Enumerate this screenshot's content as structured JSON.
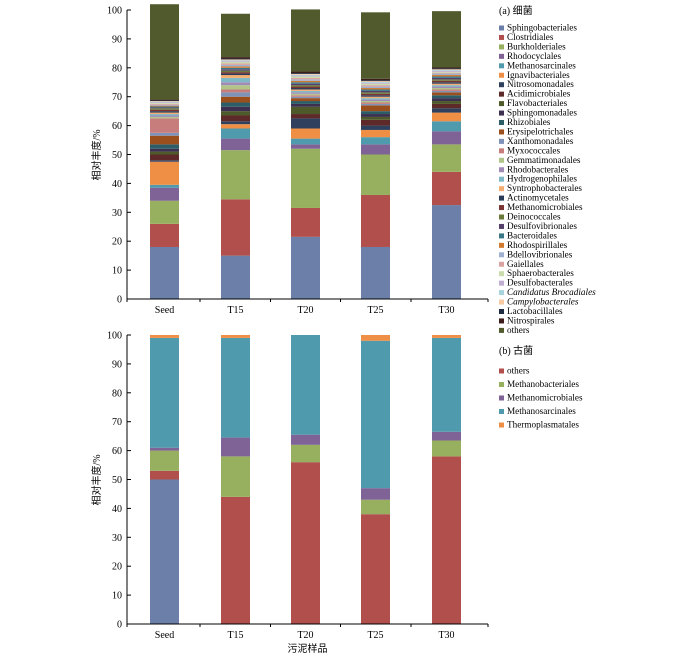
{
  "colors": {
    "Sphingobacteriales": "#6b7fa8",
    "Clostridiales": "#b04f4c",
    "Burkholderiales": "#97b05f",
    "Rhodocyclales": "#7f6296",
    "Methanosarcinales": "#4f9aac",
    "Ignavibacteriales": "#ee8f45",
    "Nitrosomonadales": "#2f3f5e",
    "Acidimicrobiales": "#5e2a29",
    "Flavobacteriales": "#4f5a2a",
    "Sphingomonadales": "#3c2f4f",
    "Rhizobiales": "#2d5e68",
    "Erysipelotrichales": "#9a4f1c",
    "Xanthomonadales": "#7f93b8",
    "Myxococcales": "#c67d7b",
    "Gemmatimonadales": "#b1c58a",
    "Rhodobacterales": "#a08ab6",
    "Hydrogenophilales": "#7fb8c6",
    "Syntrophobacterales": "#f4ad72",
    "Actinomycetales": "#2a3b5a",
    "Methanomicrobiales": "#7a3533",
    "Deinococcales": "#6a7a3a",
    "Desulfovibrionales": "#54406b",
    "Bacteroidales": "#3a7888",
    "Rhodospirillales": "#d07a30",
    "Bdellovibrionales": "#9fb0d0",
    "Gaiellales": "#d9a3a1",
    "Sphaerobacterales": "#cadcab",
    "Desulfobacterales": "#c0aed2",
    "Candidatus Brocadiales": "#a8d2dc",
    "Campylobacterales": "#f7c9a3",
    "Lactobacillales": "#1d2a40",
    "Nitrospirales": "#3d1c1c",
    "others_bacteria": "#505a2d",
    "others_archaea": "#b04f4c",
    "Methanobacteriales": "#97b05f",
    "Methanomicrobiales_a": "#7f6296",
    "Methanosarcinales_a": "#4f9aac",
    "Thermoplasmatales": "#ee8f45",
    "seed_archaea_base": "#6b7fa8"
  },
  "chart_data": [
    {
      "type": "bar",
      "stacked": true,
      "panel_title": "(a) 细菌",
      "ylabel": "相对丰度/%",
      "xlabel": "",
      "ylim": [
        0,
        100
      ],
      "yticks": [
        "0",
        "10",
        "20",
        "30",
        "40",
        "50",
        "60",
        "70",
        "80",
        "90",
        "100"
      ],
      "categories": [
        "Seed",
        "T15",
        "T20",
        "T25",
        "T30"
      ],
      "legend_position": "right",
      "series": [
        {
          "name": "Sphingobacteriales",
          "values": [
            18,
            15,
            21.5,
            18,
            32.5
          ]
        },
        {
          "name": "Clostridiales",
          "values": [
            8,
            19.5,
            10,
            18,
            11.5
          ]
        },
        {
          "name": "Burkholderiales",
          "values": [
            8,
            17,
            20.5,
            14,
            9.5
          ]
        },
        {
          "name": "Rhodocyclales",
          "values": [
            4.5,
            4,
            1.5,
            3.5,
            4.5
          ]
        },
        {
          "name": "Methanosarcinales",
          "values": [
            1,
            3.5,
            2,
            2.5,
            3.5
          ]
        },
        {
          "name": "Ignavibacteriales",
          "values": [
            8,
            1.5,
            3.5,
            2.5,
            3
          ]
        },
        {
          "name": "Nitrosomonadales",
          "values": [
            0.5,
            1,
            3.5,
            1.5,
            1.5
          ]
        },
        {
          "name": "Acidimicrobiales",
          "values": [
            2,
            2,
            1.5,
            2,
            1.5
          ]
        },
        {
          "name": "Flavobacteriales",
          "values": [
            1,
            1.5,
            2.5,
            1,
            1
          ]
        },
        {
          "name": "Sphingomonadales",
          "values": [
            1,
            1.5,
            1,
            1,
            1
          ]
        },
        {
          "name": "Rhizobiales",
          "values": [
            1.5,
            1.5,
            1,
            1,
            1
          ]
        },
        {
          "name": "Erysipelotrichales",
          "values": [
            3,
            2,
            1,
            2,
            1
          ]
        },
        {
          "name": "Xanthomonadales",
          "values": [
            1,
            1.5,
            0.5,
            0.5,
            0.5
          ]
        },
        {
          "name": "Myxococcales",
          "values": [
            5,
            1,
            0.5,
            0.5,
            0.5
          ]
        },
        {
          "name": "Gemmatimonadales",
          "values": [
            0.5,
            1.5,
            0.5,
            0.5,
            0.5
          ]
        },
        {
          "name": "Rhodobacterales",
          "values": [
            0.5,
            1,
            0.5,
            0.5,
            0.5
          ]
        },
        {
          "name": "Hydrogenophilales",
          "values": [
            0.5,
            1.5,
            0.5,
            0.5,
            0.5
          ]
        },
        {
          "name": "Syntrophobacterales",
          "values": [
            0.5,
            1,
            0.5,
            0.5,
            0.5
          ]
        },
        {
          "name": "Actinomycetales",
          "values": [
            0.5,
            0.5,
            0.5,
            0.5,
            0.5
          ]
        },
        {
          "name": "Methanomicrobiales",
          "values": [
            0.5,
            0.5,
            0.5,
            0.5,
            0.5
          ]
        },
        {
          "name": "Deinococcales",
          "values": [
            0.5,
            0.5,
            0.5,
            0.5,
            0.5
          ]
        },
        {
          "name": "Desulfovibrionales",
          "values": [
            0.3,
            0.5,
            0.5,
            0.5,
            0.5
          ]
        },
        {
          "name": "Bacteroidales",
          "values": [
            0.3,
            0.5,
            0.5,
            0.5,
            0.5
          ]
        },
        {
          "name": "Rhodospirillales",
          "values": [
            0.3,
            0.5,
            0.5,
            0.5,
            0.5
          ]
        },
        {
          "name": "Bdellovibrionales",
          "values": [
            0.3,
            0.5,
            0.5,
            0.5,
            0.5
          ]
        },
        {
          "name": "Gaiellales",
          "values": [
            0.3,
            0.5,
            0.5,
            0.5,
            0.3
          ]
        },
        {
          "name": "Sphaerobacterales",
          "values": [
            0.3,
            0.5,
            0.5,
            0.5,
            0.3
          ]
        },
        {
          "name": "Desulfobacterales",
          "values": [
            0.3,
            0.3,
            0.3,
            0.3,
            0.3
          ]
        },
        {
          "name": "Candidatus Brocadiales",
          "values": [
            0.2,
            0.3,
            0.3,
            0.3,
            0.3
          ]
        },
        {
          "name": "Campylobacterales",
          "values": [
            0.2,
            0.3,
            0.3,
            0.3,
            0.3
          ]
        },
        {
          "name": "Lactobacillales",
          "values": [
            0.2,
            0.3,
            0.3,
            0.3,
            0.3
          ]
        },
        {
          "name": "Nitrospirales",
          "values": [
            0.3,
            0.5,
            0.5,
            0.5,
            0.3
          ]
        },
        {
          "name": "others",
          "values": [
            33,
            15,
            21.5,
            23,
            19.5
          ]
        }
      ]
    },
    {
      "type": "bar",
      "stacked": true,
      "panel_title": "(b) 古菌",
      "ylabel": "相对丰度/%",
      "xlabel": "污泥样品",
      "ylim": [
        0,
        100
      ],
      "yticks": [
        "0",
        "10",
        "20",
        "30",
        "40",
        "50",
        "60",
        "70",
        "80",
        "90",
        "100"
      ],
      "categories": [
        "Seed",
        "T15",
        "T20",
        "T25",
        "T30"
      ],
      "legend_position": "right",
      "series": [
        {
          "name": "",
          "values": [
            50,
            0,
            0,
            0,
            0
          ]
        },
        {
          "name": "others",
          "values": [
            3,
            44,
            56,
            38,
            58
          ]
        },
        {
          "name": "Methanobacteriales",
          "values": [
            7,
            14,
            6,
            5,
            5.5
          ]
        },
        {
          "name": "Methanomicrobiales",
          "values": [
            1,
            6.5,
            3.5,
            4,
            3
          ]
        },
        {
          "name": "Methanosarcinales",
          "values": [
            38,
            34.5,
            34.5,
            51,
            32.5
          ]
        },
        {
          "name": "Thermoplasmatales",
          "values": [
            1,
            1,
            0,
            2,
            1
          ]
        }
      ]
    }
  ]
}
